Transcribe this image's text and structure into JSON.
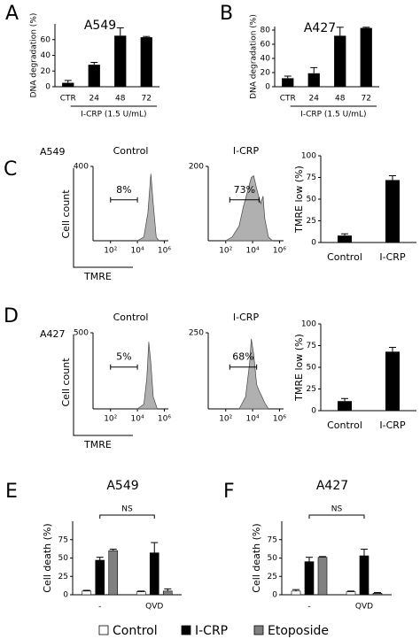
{
  "chart_data": [
    {
      "type": "bar",
      "panel": "A",
      "title": "A549",
      "ylabel": "DNA degradation (%)",
      "categories": [
        "CTR",
        "24",
        "48",
        "72"
      ],
      "values": [
        5,
        28,
        65,
        63
      ],
      "errors": [
        3,
        3,
        10,
        1
      ],
      "color": "#000000",
      "ylim": [
        0,
        80
      ],
      "yticks": [
        0,
        20,
        40,
        60
      ],
      "group_label": "I-CRP (1.5 U/mL)"
    },
    {
      "type": "bar",
      "panel": "B",
      "title": "A427",
      "ylabel": "DNA degradation (%)",
      "categories": [
        "CTR",
        "24",
        "48",
        "72"
      ],
      "values": [
        12,
        19,
        72,
        83
      ],
      "errors": [
        3,
        8,
        12,
        1
      ],
      "color": "#000000",
      "ylim": [
        0,
        85
      ],
      "yticks": [
        0,
        20,
        40,
        60,
        80
      ],
      "group_label": "I-CRP (1.5 U/mL)"
    },
    {
      "type": "area",
      "panel": "C",
      "cell_line": "A549",
      "title": "Control",
      "ylabel": "Cell count",
      "xlabel": "TMRE",
      "log_x": true,
      "x": [
        10000,
        30000,
        60000,
        100000,
        150000,
        250000,
        400000
      ],
      "values": [
        0,
        20,
        150,
        360,
        200,
        20,
        0
      ],
      "color": "#b0b0b0",
      "xlim": [
        5,
        2000000
      ],
      "xticks": [
        {
          "value": 100,
          "label": "10²"
        },
        {
          "value": 10000,
          "label": "10⁴"
        },
        {
          "value": 1000000,
          "label": "10⁶"
        }
      ],
      "ylim": [
        0,
        400
      ],
      "yticks": [
        400
      ],
      "gate": [
        100,
        10000
      ],
      "gate_label": "8%"
    },
    {
      "type": "area",
      "title": "I-CRP",
      "log_x": true,
      "x": [
        100,
        300,
        1000,
        2000,
        4000,
        8000,
        12000,
        20000,
        40000,
        60000,
        80000,
        150000,
        300000
      ],
      "values": [
        0,
        10,
        40,
        90,
        130,
        170,
        175,
        140,
        100,
        120,
        60,
        10,
        0
      ],
      "color": "#b0b0b0",
      "xlim": [
        5,
        2000000
      ],
      "xticks": [
        {
          "value": 100,
          "label": "10²"
        },
        {
          "value": 10000,
          "label": "10⁴"
        },
        {
          "value": 1000000,
          "label": "10⁶"
        }
      ],
      "ylim": [
        0,
        200
      ],
      "yticks": [
        200
      ],
      "gate": [
        200,
        30000
      ],
      "gate_label": "73%"
    },
    {
      "type": "bar",
      "ylabel": "TMRE low (%)",
      "categories": [
        "Control",
        "I-CRP"
      ],
      "values": [
        8,
        72
      ],
      "errors": [
        2,
        5
      ],
      "color": "#000000",
      "ylim": [
        0,
        100
      ],
      "yticks": [
        0,
        25,
        50,
        75,
        100
      ]
    },
    {
      "type": "area",
      "panel": "D",
      "cell_line": "A427",
      "title": "Control",
      "ylabel": "Cell count",
      "xlabel": "TMRE",
      "log_x": true,
      "x": [
        10000,
        30000,
        50000,
        70000,
        100000,
        150000,
        300000
      ],
      "values": [
        0,
        30,
        200,
        440,
        300,
        80,
        0
      ],
      "color": "#b0b0b0",
      "xlim": [
        5,
        2000000
      ],
      "xticks": [
        {
          "value": 100,
          "label": "10²"
        },
        {
          "value": 10000,
          "label": "10⁴"
        },
        {
          "value": 1000000,
          "label": "10⁶"
        }
      ],
      "ylim": [
        0,
        500
      ],
      "yticks": [
        500
      ],
      "gate": [
        100,
        10000
      ],
      "gate_label": "5%"
    },
    {
      "type": "area",
      "title": "I-CRP",
      "log_x": true,
      "x": [
        1000,
        3000,
        6000,
        8000,
        12000,
        20000,
        30000,
        50000,
        80000,
        150000
      ],
      "values": [
        0,
        40,
        150,
        230,
        180,
        80,
        60,
        40,
        20,
        0
      ],
      "color": "#b0b0b0",
      "xlim": [
        5,
        2000000
      ],
      "xticks": [
        {
          "value": 100,
          "label": "10²"
        },
        {
          "value": 10000,
          "label": "10⁴"
        },
        {
          "value": 1000000,
          "label": "10⁶"
        }
      ],
      "ylim": [
        0,
        250
      ],
      "yticks": [
        250
      ],
      "gate": [
        200,
        20000
      ],
      "gate_label": "68%"
    },
    {
      "type": "bar",
      "ylabel": "TMRE low (%)",
      "categories": [
        "Control",
        "I-CRP"
      ],
      "values": [
        11,
        68
      ],
      "errors": [
        3,
        5
      ],
      "color": "#000000",
      "ylim": [
        0,
        100
      ],
      "yticks": [
        0,
        25,
        50,
        75,
        100
      ]
    },
    {
      "type": "grouped-bar",
      "panel": "E",
      "title": "A549",
      "ylabel": "Cell death (%)",
      "categories": [
        "-",
        "QVD"
      ],
      "series": [
        {
          "color": "#ffffff",
          "values": [
            5,
            4
          ],
          "errors": [
            1,
            1
          ]
        },
        {
          "color": "#000000",
          "values": [
            47,
            57
          ],
          "errors": [
            4,
            14
          ]
        },
        {
          "color": "#808080",
          "values": [
            60,
            5
          ],
          "errors": [
            2,
            3
          ]
        }
      ],
      "ylim": [
        0,
        100
      ],
      "yticks": [
        0,
        25,
        50,
        75
      ],
      "annotation": "NS"
    },
    {
      "type": "grouped-bar",
      "panel": "F",
      "title": "A427",
      "ylabel": "Cell death (%)",
      "categories": [
        "-",
        "QVD"
      ],
      "series": [
        {
          "color": "#ffffff",
          "values": [
            5,
            4
          ],
          "errors": [
            2,
            1
          ]
        },
        {
          "color": "#000000",
          "values": [
            45,
            53
          ],
          "errors": [
            6,
            9
          ]
        },
        {
          "color": "#808080",
          "values": [
            51,
            2
          ],
          "errors": [
            1,
            1
          ]
        }
      ],
      "ylim": [
        0,
        100
      ],
      "yticks": [
        0,
        25,
        50,
        75
      ],
      "annotation": "NS"
    }
  ],
  "legend": [
    {
      "name": "Control",
      "color": "#ffffff"
    },
    {
      "name": "I-CRP",
      "color": "#000000"
    },
    {
      "name": "Etoposide",
      "color": "#808080"
    }
  ]
}
